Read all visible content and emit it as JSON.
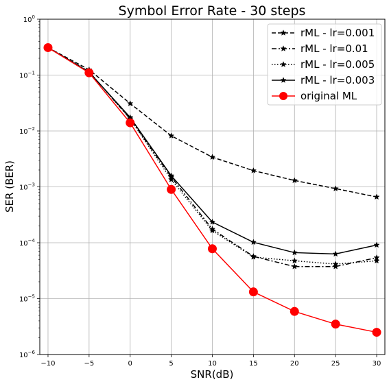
{
  "chart_data": {
    "type": "line",
    "title": "Symbol Error Rate - 30 steps",
    "xlabel": "SNR(dB)",
    "ylabel": "SER (BER)",
    "xlim": [
      -11,
      31
    ],
    "ylim": [
      1e-06,
      1
    ],
    "yscale": "log",
    "grid": true,
    "legend_position": "top-right",
    "x": [
      -10,
      -5,
      0,
      5,
      10,
      15,
      20,
      25,
      30
    ],
    "x_ticks": [
      -10,
      -5,
      0,
      5,
      10,
      15,
      20,
      25,
      30
    ],
    "x_tick_labels": [
      "−10",
      "−5",
      "0",
      "5",
      "10",
      "15",
      "20",
      "25",
      "30"
    ],
    "y_ticks": [
      1e-06,
      1e-05,
      0.0001,
      0.001,
      0.01,
      0.1,
      1
    ],
    "y_tick_labels": [
      {
        "base": "10",
        "exp": "−6"
      },
      {
        "base": "10",
        "exp": "−5"
      },
      {
        "base": "10",
        "exp": "−4"
      },
      {
        "base": "10",
        "exp": "−3"
      },
      {
        "base": "10",
        "exp": "−2"
      },
      {
        "base": "10",
        "exp": "−1"
      },
      {
        "base": "10",
        "exp": "0"
      }
    ],
    "series": [
      {
        "name": "rML - lr=0.001",
        "color": "#000000",
        "dash": "dashed",
        "marker": "star",
        "values": [
          0.31,
          0.125,
          0.031,
          0.0082,
          0.0034,
          0.00195,
          0.0013,
          0.00093,
          0.00066
        ]
      },
      {
        "name": "rML - lr=0.01",
        "color": "#000000",
        "dash": "dashdot",
        "marker": "star",
        "values": [
          0.31,
          0.115,
          0.0165,
          0.0015,
          0.000175,
          5.7e-05,
          3.75e-05,
          3.75e-05,
          5.4e-05
        ]
      },
      {
        "name": "rML - lr=0.005",
        "color": "#000000",
        "dash": "dotted",
        "marker": "star",
        "values": [
          0.31,
          0.115,
          0.0165,
          0.00135,
          0.000165,
          5.55e-05,
          4.75e-05,
          4.15e-05,
          4.75e-05
        ]
      },
      {
        "name": "rML - lr=0.003",
        "color": "#000000",
        "dash": "solid",
        "marker": "star",
        "values": [
          0.31,
          0.113,
          0.0175,
          0.00158,
          0.000235,
          0.000102,
          6.65e-05,
          6.3e-05,
          9.1e-05
        ]
      },
      {
        "name": "original ML",
        "color": "#ff0000",
        "dash": "solid",
        "marker": "circle",
        "values": [
          0.31,
          0.11,
          0.014,
          0.0009,
          7.8e-05,
          1.32e-05,
          5.9e-06,
          3.5e-06,
          2.5e-06
        ]
      }
    ]
  }
}
